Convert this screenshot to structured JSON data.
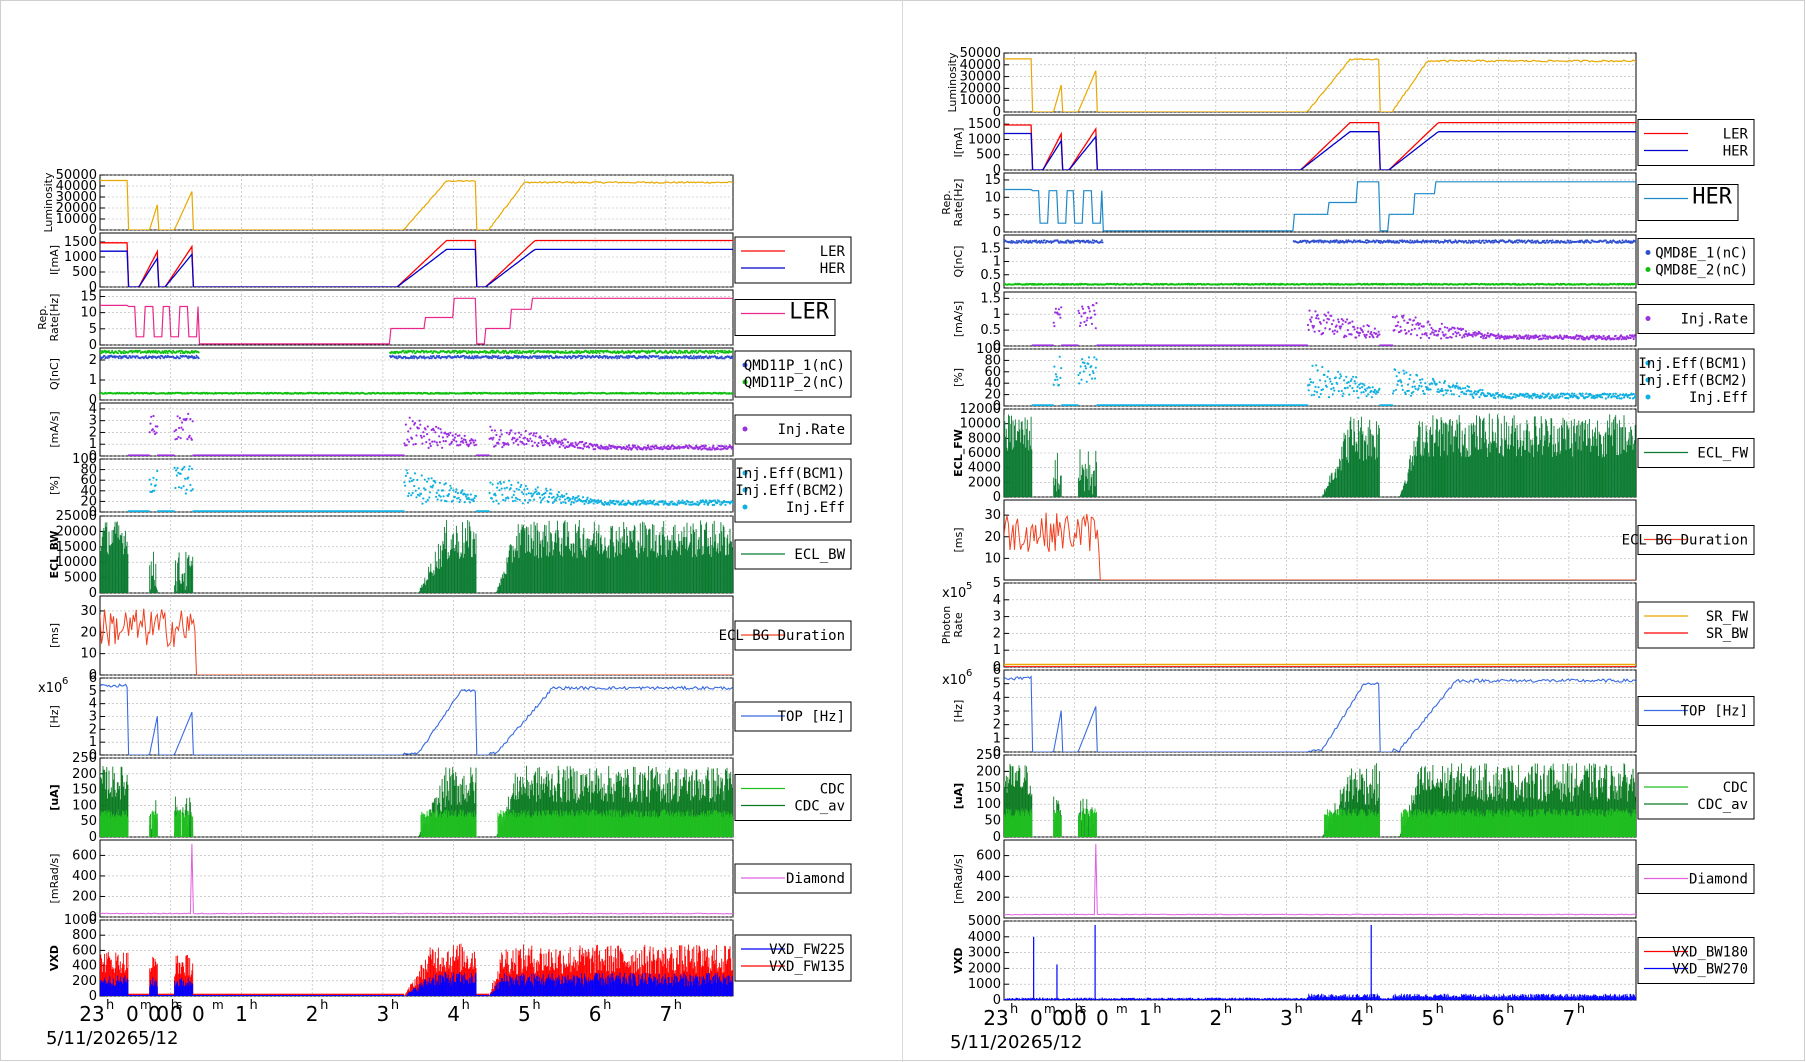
{
  "colors": {
    "luminosity": "#e8a800",
    "ler": "#ff0000",
    "her": "#0000cc",
    "rep_ler": "#e8288c",
    "rep_her": "#1e88c8",
    "q1": "#3050d0",
    "q2": "#10c010",
    "inj_rate": "#9a30e0",
    "inj_eff": "#10b0e0",
    "ecl": "#0a7a30",
    "ecl_bg": "#f04020",
    "sr_fw": "#e8a800",
    "sr_bw": "#ff0000",
    "top": "#3a6ae0",
    "cdc": "#20c020",
    "cdc_av": "#0a7a20",
    "diamond": "#e060e0",
    "vxd_blue": "#0000ff",
    "vxd_red": "#ff0000",
    "grid": "#b0b0b0"
  },
  "chart_data": [
    {
      "type": "line",
      "x_ticks": [
        "23h00m",
        "0h00m",
        "1h",
        "2h",
        "3h",
        "4h",
        "5h",
        "6h",
        "7h"
      ],
      "x_tick_labels": [
        "23",
        "0",
        "1",
        "2",
        "3",
        "4",
        "5",
        "6",
        "7"
      ],
      "x_overlap_labels": [
        "0",
        "0",
        "0",
        "0"
      ],
      "date_labels": [
        "5/11/2026",
        "5/12"
      ],
      "panels": [
        {
          "id": "lum",
          "ylabel": "Luminosity",
          "yticks": [
            "0",
            "10000",
            "20000",
            "30000",
            "40000",
            "50000"
          ],
          "ylim": [
            0,
            50000
          ],
          "legend": [],
          "series": [
            {
              "name": "",
              "color_key": "luminosity"
            }
          ]
        },
        {
          "id": "cur",
          "ylabel": "I[mA]",
          "yticks": [
            "0",
            "500",
            "1000",
            "1500"
          ],
          "ylim": [
            0,
            1800
          ],
          "legend": [
            "LER",
            "HER"
          ],
          "series": [
            {
              "name": "LER",
              "color_key": "ler"
            },
            {
              "name": "HER",
              "color_key": "her"
            }
          ]
        },
        {
          "id": "rep",
          "ylabel": "Rep. Rate[Hz]",
          "yticks": [
            "0",
            "5",
            "10",
            "15"
          ],
          "ylim": [
            0,
            17
          ],
          "legend": [
            "LER"
          ],
          "big_legend": true,
          "series": [
            {
              "name": "LER",
              "color_key": "rep_ler"
            }
          ]
        },
        {
          "id": "q",
          "ylabel": "Q[nC]",
          "yticks": [
            "0",
            "1",
            "2"
          ],
          "ylim": [
            0,
            2.6
          ],
          "legend": [
            "QMD11P_1(nC)",
            "QMD11P_2(nC)"
          ],
          "series": [
            {
              "name": "QMD11P_1(nC)",
              "color_key": "q1"
            },
            {
              "name": "QMD11P_2(nC)",
              "color_key": "q2"
            }
          ]
        },
        {
          "id": "injrate",
          "ylabel": "[mA/s]",
          "yticks": [
            "0",
            "1",
            "2",
            "3",
            "4"
          ],
          "ylim": [
            0,
            4.5
          ],
          "legend": [
            "Inj.Rate"
          ],
          "series": [
            {
              "name": "Inj.Rate",
              "color_key": "inj_rate"
            }
          ]
        },
        {
          "id": "injeff",
          "ylabel": "[%]",
          "yticks": [
            "0",
            "20",
            "40",
            "60",
            "80",
            "100"
          ],
          "ylim": [
            0,
            100
          ],
          "legend": [
            "Inj.Eff(BCM1)",
            "Inj.Eff(BCM2)",
            "Inj.Eff"
          ],
          "series": [
            {
              "name": "Inj.Eff",
              "color_key": "inj_eff"
            }
          ]
        },
        {
          "id": "ecl",
          "ylabel": "ECL_BW",
          "yticks": [
            "0",
            "5000",
            "10000",
            "15000",
            "20000",
            "25000"
          ],
          "ylim": [
            0,
            25000
          ],
          "legend": [
            "ECL_BW"
          ],
          "series": [
            {
              "name": "ECL_BW",
              "color_key": "ecl"
            }
          ]
        },
        {
          "id": "eclbg",
          "ylabel": "[ms]",
          "yticks": [
            "0",
            "10",
            "20",
            "30"
          ],
          "ylim": [
            0,
            37
          ],
          "legend": [
            "ECL BG Duration"
          ],
          "series": [
            {
              "name": "ECL BG Duration",
              "color_key": "ecl_bg"
            }
          ]
        },
        {
          "id": "top",
          "ylabel": "[Hz]",
          "yticks": [
            "0",
            "1",
            "2",
            "3",
            "4",
            "5",
            "6"
          ],
          "ylim": [
            0,
            6
          ],
          "multiplier": "x10",
          "multiplier_exp": "6",
          "legend": [
            "TOP [Hz]"
          ],
          "series": [
            {
              "name": "TOP [Hz]",
              "color_key": "top"
            }
          ]
        },
        {
          "id": "cdc",
          "ylabel": "[uA]",
          "yticks": [
            "0",
            "50",
            "100",
            "150",
            "200",
            "250"
          ],
          "ylim": [
            0,
            250
          ],
          "legend": [
            "CDC",
            "CDC_av"
          ],
          "series": [
            {
              "name": "CDC",
              "color_key": "cdc"
            },
            {
              "name": "CDC_av",
              "color_key": "cdc_av"
            }
          ]
        },
        {
          "id": "diamond",
          "ylabel": "[mRad/s]",
          "yticks": [
            "0",
            "200",
            "400",
            "600"
          ],
          "ylim": [
            0,
            750
          ],
          "legend": [
            "Diamond"
          ],
          "series": [
            {
              "name": "Diamond",
              "color_key": "diamond"
            }
          ]
        },
        {
          "id": "vxd",
          "ylabel": "VXD",
          "yticks": [
            "0",
            "200",
            "400",
            "600",
            "800",
            "1000"
          ],
          "ylim": [
            0,
            1000
          ],
          "legend": [
            "VXD_FW225",
            "VXD_FW135"
          ],
          "series": [
            {
              "name": "VXD_FW225",
              "color_key": "vxd_blue"
            },
            {
              "name": "VXD_FW135",
              "color_key": "vxd_red"
            }
          ]
        }
      ]
    },
    {
      "type": "line",
      "x_ticks": [
        "23h00m",
        "0h00m",
        "1h",
        "2h",
        "3h",
        "4h",
        "5h",
        "6h",
        "7h"
      ],
      "x_tick_labels": [
        "23",
        "0",
        "1",
        "2",
        "3",
        "4",
        "5",
        "6",
        "7"
      ],
      "x_overlap_labels": [
        "0",
        "0",
        "0",
        "0"
      ],
      "date_labels": [
        "5/11/2026",
        "5/12"
      ],
      "panels": [
        {
          "id": "lum",
          "ylabel": "Luminosity",
          "yticks": [
            "0",
            "10000",
            "20000",
            "30000",
            "40000",
            "50000"
          ],
          "ylim": [
            0,
            50000
          ],
          "legend": [],
          "series": [
            {
              "name": "",
              "color_key": "luminosity"
            }
          ]
        },
        {
          "id": "cur",
          "ylabel": "I[mA]",
          "yticks": [
            "0",
            "500",
            "1000",
            "1500"
          ],
          "ylim": [
            0,
            1800
          ],
          "legend": [
            "LER",
            "HER"
          ],
          "series": [
            {
              "name": "LER",
              "color_key": "ler"
            },
            {
              "name": "HER",
              "color_key": "her"
            }
          ]
        },
        {
          "id": "rep",
          "ylabel": "Rep. Rate[Hz]",
          "yticks": [
            "0",
            "5",
            "10",
            "15"
          ],
          "ylim": [
            0,
            17
          ],
          "legend": [
            "HER"
          ],
          "big_legend": true,
          "series": [
            {
              "name": "HER",
              "color_key": "rep_her"
            }
          ]
        },
        {
          "id": "q",
          "ylabel": "Q[nC]",
          "yticks": [
            "0",
            "0.5",
            "1",
            "1.5"
          ],
          "ylim": [
            0,
            2
          ],
          "legend": [
            "QMD8E_1(nC)",
            "QMD8E_2(nC)"
          ],
          "series": [
            {
              "name": "QMD8E_1(nC)",
              "color_key": "q1"
            },
            {
              "name": "QMD8E_2(nC)",
              "color_key": "q2"
            }
          ]
        },
        {
          "id": "injrate",
          "ylabel": "[mA/s]",
          "yticks": [
            "0",
            "0.5",
            "1",
            "1.5"
          ],
          "ylim": [
            0,
            1.7
          ],
          "legend": [
            "Inj.Rate"
          ],
          "series": [
            {
              "name": "Inj.Rate",
              "color_key": "inj_rate"
            }
          ]
        },
        {
          "id": "injeff",
          "ylabel": "[%]",
          "yticks": [
            "0",
            "20",
            "40",
            "60",
            "80",
            "100"
          ],
          "ylim": [
            0,
            100
          ],
          "legend": [
            "Inj.Eff(BCM1)",
            "Inj.Eff(BCM2)",
            "Inj.Eff"
          ],
          "series": [
            {
              "name": "Inj.Eff",
              "color_key": "inj_eff"
            }
          ]
        },
        {
          "id": "ecl",
          "ylabel": "ECL_FW",
          "yticks": [
            "0",
            "2000",
            "4000",
            "6000",
            "8000",
            "10000",
            "12000"
          ],
          "ylim": [
            0,
            12000
          ],
          "legend": [
            "ECL_FW"
          ],
          "series": [
            {
              "name": "ECL_FW",
              "color_key": "ecl"
            }
          ]
        },
        {
          "id": "eclbg",
          "ylabel": "[ms]",
          "yticks": [
            "10",
            "20",
            "30"
          ],
          "ylim": [
            0,
            37
          ],
          "legend": [
            "ECL BG Duration"
          ],
          "series": [
            {
              "name": "ECL BG Duration",
              "color_key": "ecl_bg"
            }
          ]
        },
        {
          "id": "photon",
          "ylabel": "Photon Rate",
          "yticks": [
            "0",
            "1",
            "2",
            "3",
            "4",
            "5"
          ],
          "ylim": [
            0,
            5
          ],
          "multiplier": "x10",
          "multiplier_exp": "5",
          "legend": [
            "SR_FW",
            "SR_BW"
          ],
          "series": [
            {
              "name": "SR_FW",
              "color_key": "sr_fw"
            },
            {
              "name": "SR_BW",
              "color_key": "sr_bw"
            }
          ]
        },
        {
          "id": "top",
          "ylabel": "[Hz]",
          "yticks": [
            "0",
            "1",
            "2",
            "3",
            "4",
            "5",
            "6"
          ],
          "ylim": [
            0,
            6
          ],
          "multiplier": "x10",
          "multiplier_exp": "6",
          "legend": [
            "TOP [Hz]"
          ],
          "series": [
            {
              "name": "TOP [Hz]",
              "color_key": "top"
            }
          ]
        },
        {
          "id": "cdc",
          "ylabel": "[uA]",
          "yticks": [
            "0",
            "50",
            "100",
            "150",
            "200",
            "250"
          ],
          "ylim": [
            0,
            250
          ],
          "legend": [
            "CDC",
            "CDC_av"
          ],
          "series": [
            {
              "name": "CDC",
              "color_key": "cdc"
            },
            {
              "name": "CDC_av",
              "color_key": "cdc_av"
            }
          ]
        },
        {
          "id": "diamond",
          "ylabel": "[mRad/s]",
          "yticks": [
            "200",
            "400",
            "600"
          ],
          "ylim": [
            0,
            750
          ],
          "legend": [
            "Diamond"
          ],
          "series": [
            {
              "name": "Diamond",
              "color_key": "diamond"
            }
          ]
        },
        {
          "id": "vxd",
          "ylabel": "VXD",
          "yticks": [
            "0",
            "1000",
            "2000",
            "3000",
            "4000",
            "5000"
          ],
          "ylim": [
            0,
            5000
          ],
          "legend": [
            "VXD_BW180",
            "VXD_BW270"
          ],
          "series": [
            {
              "name": "VXD_BW180",
              "color_key": "vxd_red"
            },
            {
              "name": "VXD_BW270",
              "color_key": "vxd_blue"
            }
          ]
        }
      ]
    }
  ]
}
